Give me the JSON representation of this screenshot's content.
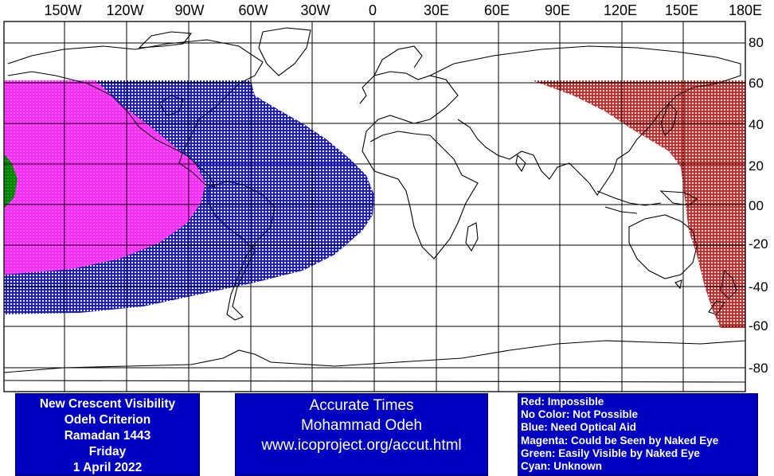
{
  "map": {
    "longitude_labels": [
      "150W",
      "120W",
      "90W",
      "60W",
      "30W",
      "0",
      "30E",
      "60E",
      "90E",
      "120E",
      "150E",
      "180E"
    ],
    "latitude_labels": [
      "80",
      "60",
      "40",
      "20",
      "00",
      "-20",
      "-40",
      "-60",
      "-80"
    ],
    "colors": {
      "impossible": "#d01010",
      "optical_aid": "#0000dd",
      "naked_eye": "#ff30ff",
      "easily_visible": "#009000",
      "grid": "#000000",
      "coast": "#000000"
    }
  },
  "info_left": {
    "lines": [
      "New Crescent Visibility",
      "Odeh Criterion",
      "Ramadan 1443",
      "Friday",
      "1 April 2022"
    ]
  },
  "info_center": {
    "lines": [
      "Accurate Times",
      "Mohammad Odeh",
      "www.icoproject.org/accut.html"
    ]
  },
  "legend": {
    "items": [
      "Red: Impossible",
      "No Color: Not Possible",
      "Blue: Need Optical Aid",
      "Magenta: Could be Seen by Naked Eye",
      "Green: Easily Visible by Naked Eye",
      "Cyan: Unknown"
    ]
  }
}
